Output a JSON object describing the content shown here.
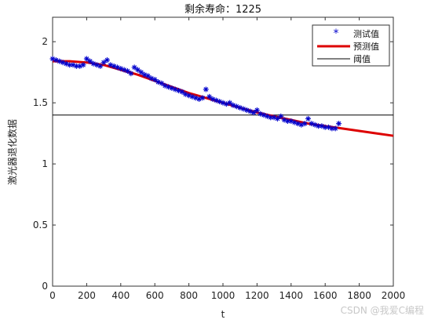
{
  "chart_data": {
    "type": "line",
    "title": "剩余寿命：1225",
    "xlabel": "t",
    "ylabel": "激光器退化数据",
    "xlim": [
      0,
      2000
    ],
    "ylim": [
      0,
      2.2
    ],
    "xticks": [
      0,
      200,
      400,
      600,
      800,
      1000,
      1200,
      1400,
      1600,
      1800,
      2000
    ],
    "yticks": [
      0,
      0.5,
      1,
      1.5,
      2
    ],
    "xtick_labels": [
      "0",
      "200",
      "400",
      "600",
      "800",
      "1000",
      "1200",
      "1400",
      "1600",
      "1800",
      "2000"
    ],
    "ytick_labels": [
      "0",
      "0.5",
      "1",
      "1.5",
      "2"
    ],
    "grid": false,
    "legend_position": "top-right",
    "legend": [
      "测试值",
      "预测值",
      "阈值"
    ],
    "series": [
      {
        "name": "测试值",
        "marker": "asterisk",
        "color": "#0000cc",
        "x": [
          0,
          20,
          40,
          60,
          80,
          100,
          120,
          140,
          160,
          180,
          200,
          220,
          240,
          260,
          280,
          300,
          320,
          340,
          360,
          380,
          400,
          420,
          440,
          460,
          480,
          500,
          520,
          540,
          560,
          580,
          600,
          620,
          640,
          660,
          680,
          700,
          720,
          740,
          760,
          780,
          800,
          820,
          840,
          860,
          880,
          900,
          920,
          940,
          960,
          980,
          1000,
          1020,
          1040,
          1060,
          1080,
          1100,
          1120,
          1140,
          1160,
          1180,
          1200,
          1220,
          1240,
          1260,
          1280,
          1300,
          1320,
          1340,
          1360,
          1380,
          1400,
          1420,
          1440,
          1460,
          1480,
          1500,
          1520,
          1540,
          1560,
          1580,
          1600,
          1620,
          1640,
          1660,
          1680
        ],
        "y": [
          1.86,
          1.85,
          1.84,
          1.83,
          1.82,
          1.81,
          1.81,
          1.8,
          1.8,
          1.81,
          1.86,
          1.84,
          1.82,
          1.81,
          1.8,
          1.83,
          1.85,
          1.81,
          1.8,
          1.79,
          1.78,
          1.77,
          1.76,
          1.74,
          1.79,
          1.77,
          1.75,
          1.73,
          1.72,
          1.7,
          1.69,
          1.67,
          1.66,
          1.64,
          1.63,
          1.62,
          1.61,
          1.6,
          1.59,
          1.57,
          1.56,
          1.55,
          1.54,
          1.53,
          1.54,
          1.61,
          1.55,
          1.53,
          1.52,
          1.51,
          1.5,
          1.49,
          1.5,
          1.48,
          1.47,
          1.46,
          1.45,
          1.44,
          1.43,
          1.42,
          1.44,
          1.41,
          1.4,
          1.39,
          1.38,
          1.38,
          1.37,
          1.39,
          1.36,
          1.35,
          1.35,
          1.34,
          1.33,
          1.32,
          1.33,
          1.37,
          1.33,
          1.32,
          1.31,
          1.31,
          1.3,
          1.3,
          1.29,
          1.29,
          1.33
        ]
      },
      {
        "name": "预测值",
        "color": "#dd0000",
        "x": [
          0,
          100,
          200,
          300,
          400,
          500,
          600,
          700,
          800,
          900,
          1000,
          1100,
          1200,
          1300,
          1400,
          1500,
          1600,
          1700,
          1800,
          1900,
          2000
        ],
        "y": [
          1.84,
          1.84,
          1.83,
          1.81,
          1.77,
          1.73,
          1.68,
          1.63,
          1.58,
          1.54,
          1.5,
          1.46,
          1.42,
          1.39,
          1.36,
          1.33,
          1.31,
          1.29,
          1.27,
          1.25,
          1.23
        ]
      },
      {
        "name": "阈值",
        "color": "#000000",
        "x": [
          0,
          2000
        ],
        "y": [
          1.4,
          1.4
        ]
      }
    ]
  },
  "watermark": "CSDN @我爱C编程"
}
